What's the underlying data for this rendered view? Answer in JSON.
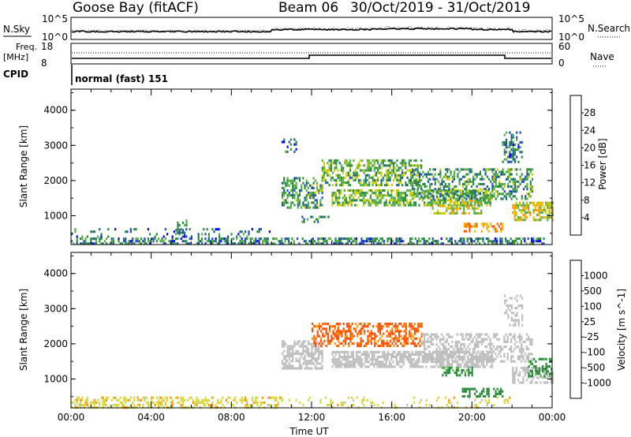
{
  "header": {
    "station": "Goose Bay (fitACF)",
    "beam": "Beam 06",
    "dates": "30/Oct/2019 - 31/Oct/2019"
  },
  "nsky_panel": {
    "left_label": "N.Sky",
    "right_label": "N.Search",
    "tick_top": "10^5",
    "tick_bottom": "10^0",
    "right_tick_top": "10^5",
    "right_tick_bottom": "10^0"
  },
  "freq_panel": {
    "label_line1": "Freq.",
    "label_line2": "[MHz]",
    "left_tick_top": "18",
    "left_tick_bottom": "8",
    "right_label": "Nave",
    "right_tick_top": "60",
    "right_tick_bottom": "0"
  },
  "cpid_panel": {
    "label": "CPID",
    "mode_text": "normal (fast) 151"
  },
  "colors": {
    "power_scale": [
      "#0000ff",
      "#1c4fb5",
      "#2a8a3c",
      "#58b04a",
      "#cccc00",
      "#ffa000",
      "#ff5a00",
      "#ee0000"
    ],
    "velocity_scale": [
      "#ff0000",
      "#ff5000",
      "#ff9400",
      "#d8d840",
      "#bebebe",
      "#55b840",
      "#2a8a3c",
      "#2e58b0",
      "#0000dd"
    ]
  },
  "chart_data": [
    {
      "type": "heatmap",
      "title": "Power",
      "ylabel": "Slant Range [km]",
      "colorbar_label": "Power [dB]",
      "colorbar_ticks": [
        "4",
        "8",
        "12",
        "16",
        "20",
        "24",
        "28"
      ],
      "y_ticks": [
        "1000",
        "2000",
        "3000",
        "4000"
      ],
      "ylim": [
        180,
        4600
      ],
      "x_ticks": [
        "00:00",
        "04:00",
        "08:00",
        "12:00",
        "16:00",
        "20:00",
        "00:00"
      ],
      "xlim_hours": [
        0,
        24
      ],
      "regions": [
        {
          "x": [
            0,
            23.6
          ],
          "y": [
            180,
            380
          ],
          "value": 9,
          "density": 0.55
        },
        {
          "x": [
            0,
            10
          ],
          "y": [
            380,
            650
          ],
          "value": 8,
          "density": 0.15
        },
        {
          "x": [
            5.2,
            5.8
          ],
          "y": [
            550,
            900
          ],
          "value": 9,
          "density": 0.55
        },
        {
          "x": [
            10.5,
            12.5
          ],
          "y": [
            1200,
            2100
          ],
          "value": 11,
          "density": 0.5
        },
        {
          "x": [
            11.5,
            12.8
          ],
          "y": [
            800,
            1000
          ],
          "value": 9,
          "density": 0.35
        },
        {
          "x": [
            12.5,
            17.5
          ],
          "y": [
            1900,
            2600
          ],
          "value": 13,
          "density": 0.55
        },
        {
          "x": [
            13,
            21
          ],
          "y": [
            1300,
            1750
          ],
          "value": 14,
          "density": 0.6
        },
        {
          "x": [
            17,
            23
          ],
          "y": [
            1500,
            2350
          ],
          "value": 11,
          "density": 0.45
        },
        {
          "x": [
            18,
            20.5
          ],
          "y": [
            1100,
            1450
          ],
          "value": 18,
          "density": 0.5
        },
        {
          "x": [
            22,
            24
          ],
          "y": [
            900,
            1400
          ],
          "value": 18,
          "density": 0.6
        },
        {
          "x": [
            19.5,
            21.5
          ],
          "y": [
            550,
            800
          ],
          "value": 22,
          "density": 0.5
        },
        {
          "x": [
            21.5,
            22.5
          ],
          "y": [
            2500,
            3400
          ],
          "value": 9,
          "density": 0.35
        },
        {
          "x": [
            10.5,
            11.2
          ],
          "y": [
            2800,
            3200
          ],
          "value": 8,
          "density": 0.25
        }
      ]
    },
    {
      "type": "heatmap",
      "title": "Velocity",
      "ylabel": "Slant Range [km]",
      "colorbar_label": "Velocity [m s^-1]",
      "colorbar_ticks": [
        "-1000",
        "-500",
        "-100",
        "-25",
        "25",
        "100",
        "500",
        "1000"
      ],
      "y_ticks": [
        "1000",
        "2000",
        "3000",
        "4000"
      ],
      "ylim": [
        180,
        4600
      ],
      "x_ticks": [
        "00:00",
        "04:00",
        "08:00",
        "12:00",
        "16:00",
        "20:00",
        "00:00"
      ],
      "xlim_hours": [
        0,
        24
      ],
      "xlabel": "Time UT",
      "regions": [
        {
          "x": [
            0,
            10.5
          ],
          "y": [
            180,
            500
          ],
          "value": -70,
          "density": 0.45
        },
        {
          "x": [
            10.5,
            22
          ],
          "y": [
            180,
            500
          ],
          "value": -60,
          "density": 0.15
        },
        {
          "x": [
            10.5,
            12.5
          ],
          "y": [
            1300,
            2100
          ],
          "value": 0,
          "density": 0.6
        },
        {
          "x": [
            12,
            17.5
          ],
          "y": [
            1950,
            2600
          ],
          "value": -650,
          "density": 0.55
        },
        {
          "x": [
            13,
            21
          ],
          "y": [
            1350,
            1800
          ],
          "value": 0,
          "density": 0.7
        },
        {
          "x": [
            17.5,
            23
          ],
          "y": [
            1500,
            2300
          ],
          "value": 0,
          "density": 0.45
        },
        {
          "x": [
            18.5,
            20
          ],
          "y": [
            1100,
            1350
          ],
          "value": 150,
          "density": 0.5
        },
        {
          "x": [
            22,
            24
          ],
          "y": [
            900,
            1350
          ],
          "value": 0,
          "density": 0.55
        },
        {
          "x": [
            22.8,
            24
          ],
          "y": [
            1100,
            1600
          ],
          "value": 150,
          "density": 0.45
        },
        {
          "x": [
            19.5,
            21.5
          ],
          "y": [
            500,
            750
          ],
          "value": 200,
          "density": 0.55
        },
        {
          "x": [
            21.6,
            22.5
          ],
          "y": [
            2500,
            3400
          ],
          "value": 0,
          "density": 0.35
        }
      ]
    }
  ]
}
